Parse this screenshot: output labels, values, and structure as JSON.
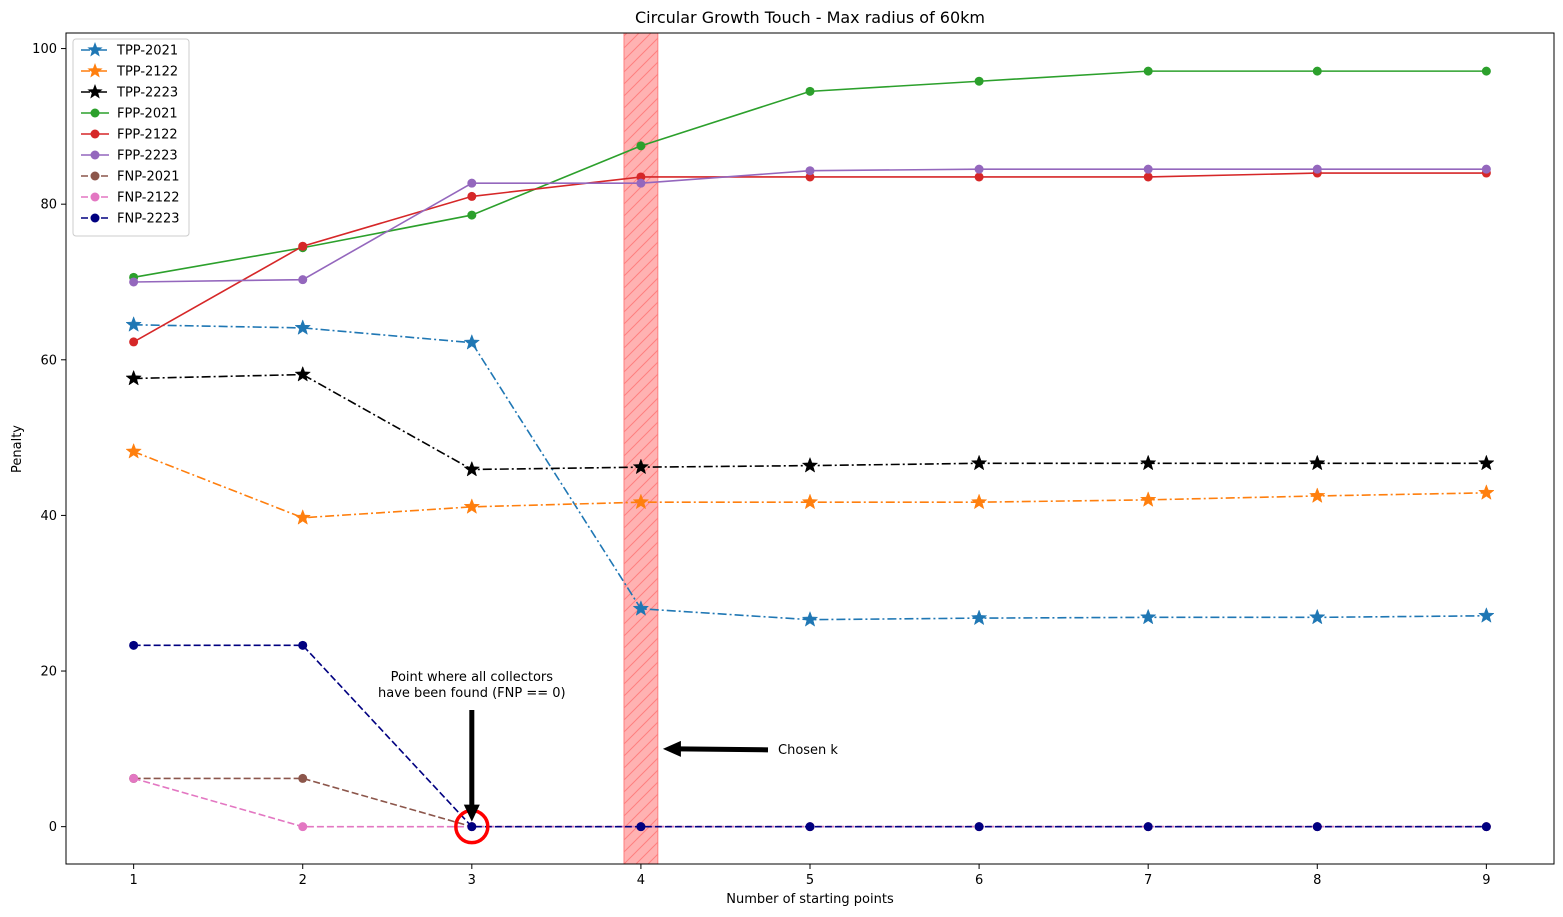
{
  "chart_data": {
    "type": "line",
    "title": "Circular Growth Touch - Max radius of 60km",
    "xlabel": "Number of starting points",
    "ylabel": "Penalty",
    "xlim": [
      0.6,
      9.4
    ],
    "ylim": [
      -4.8,
      102
    ],
    "x": [
      1,
      2,
      3,
      4,
      5,
      6,
      7,
      8,
      9
    ],
    "xticks": [
      "1",
      "2",
      "3",
      "4",
      "5",
      "6",
      "7",
      "8",
      "9"
    ],
    "yticks": [
      "0",
      "20",
      "40",
      "60",
      "80",
      "100"
    ],
    "grid": false,
    "legend_position": "upper-left",
    "series": [
      {
        "name": "TPP-2021",
        "color": "#1f77b4",
        "marker": "star",
        "linestyle": "dashdot",
        "values": [
          64.5,
          64.1,
          62.2,
          28.0,
          26.6,
          26.8,
          26.9,
          26.9,
          27.1
        ]
      },
      {
        "name": "TPP-2122",
        "color": "#ff7f0e",
        "marker": "star",
        "linestyle": "dashdot",
        "values": [
          48.2,
          39.7,
          41.1,
          41.7,
          41.7,
          41.7,
          42.0,
          42.5,
          42.9
        ]
      },
      {
        "name": "TPP-2223",
        "color": "#000000",
        "marker": "star",
        "linestyle": "dashdot",
        "values": [
          57.6,
          58.1,
          45.9,
          46.2,
          46.4,
          46.7,
          46.7,
          46.7,
          46.7
        ]
      },
      {
        "name": "FPP-2021",
        "color": "#2ca02c",
        "marker": "circle",
        "linestyle": "solid",
        "values": [
          70.6,
          74.4,
          78.6,
          87.5,
          94.5,
          95.8,
          97.1,
          97.1,
          97.1
        ]
      },
      {
        "name": "FPP-2122",
        "color": "#d62728",
        "marker": "circle",
        "linestyle": "solid",
        "values": [
          62.3,
          74.6,
          81.0,
          83.5,
          83.5,
          83.5,
          83.5,
          84.0,
          84.0
        ]
      },
      {
        "name": "FPP-2223",
        "color": "#9467bd",
        "marker": "circle",
        "linestyle": "solid",
        "values": [
          70.0,
          70.3,
          82.7,
          82.7,
          84.3,
          84.5,
          84.5,
          84.5,
          84.5
        ]
      },
      {
        "name": "FNP-2021",
        "color": "#8c564b",
        "marker": "circle",
        "linestyle": "dashed",
        "values": [
          6.2,
          6.2,
          0,
          0,
          0,
          0,
          0,
          0,
          0
        ]
      },
      {
        "name": "FNP-2122",
        "color": "#e377c2",
        "marker": "circle",
        "linestyle": "dashed",
        "values": [
          6.2,
          0,
          0,
          0,
          0,
          0,
          0,
          0,
          0
        ]
      },
      {
        "name": "FNP-2223",
        "color": "#000080",
        "marker": "circle",
        "linestyle": "dashed",
        "values": [
          23.3,
          23.3,
          0,
          0,
          0,
          0,
          0,
          0,
          0
        ]
      }
    ],
    "highlight_span": {
      "x_from": 3.9,
      "x_to": 4.1,
      "color": "#ff7f7f",
      "hatch": "diagonal"
    },
    "annotations": [
      {
        "text_lines": [
          "Point where all collectors",
          "have been found (FNP == 0)"
        ],
        "target": {
          "x": 3,
          "y": 0
        },
        "arrow": "down"
      },
      {
        "text_lines": [
          "Chosen k"
        ],
        "target": {
          "x": 4.13,
          "y": 10
        },
        "arrow": "left"
      }
    ],
    "marked_point": {
      "x": 3,
      "y": 0,
      "color": "#ff0000",
      "shape": "ring"
    }
  }
}
